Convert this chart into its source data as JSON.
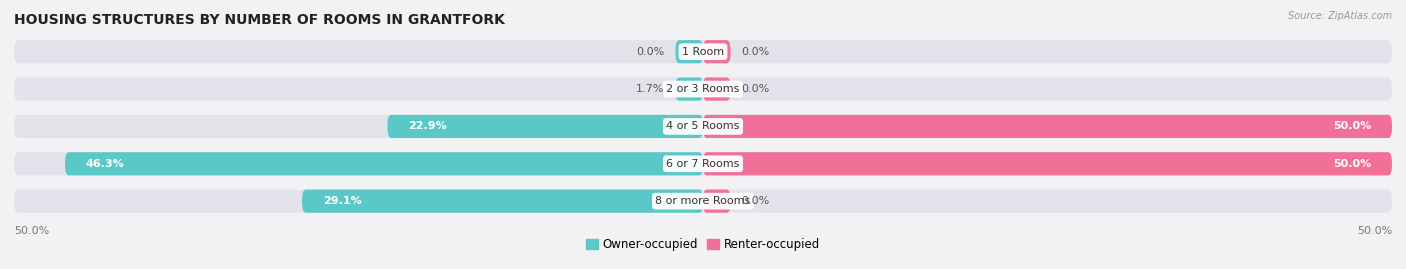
{
  "title": "HOUSING STRUCTURES BY NUMBER OF ROOMS IN GRANTFORK",
  "source": "Source: ZipAtlas.com",
  "categories": [
    "1 Room",
    "2 or 3 Rooms",
    "4 or 5 Rooms",
    "6 or 7 Rooms",
    "8 or more Rooms"
  ],
  "owner_values": [
    0.0,
    1.7,
    22.9,
    46.3,
    29.1
  ],
  "renter_values": [
    0.0,
    0.0,
    50.0,
    50.0,
    0.0
  ],
  "owner_color": "#5BC8C8",
  "renter_color": "#F07098",
  "background_color": "#f2f2f5",
  "bar_background": "#e2e2ea",
  "xlim": 50.0,
  "axis_label_left": "50.0%",
  "axis_label_right": "50.0%",
  "title_fontsize": 10,
  "bar_height": 0.62,
  "label_fontsize": 8,
  "cat_fontsize": 8,
  "min_bar_display": 2.0
}
